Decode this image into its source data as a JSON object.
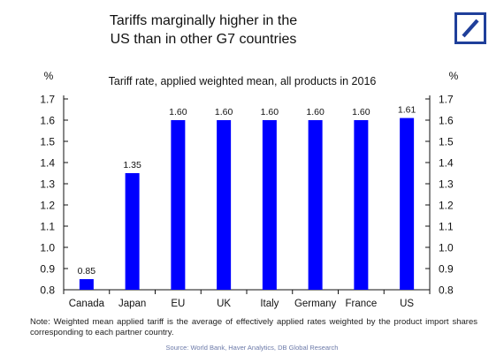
{
  "title_line1": "Tariffs marginally higher in the",
  "title_line2": "US than in other G7 countries",
  "logo_icon": "deutsche-bank-slash-logo",
  "colors": {
    "bar": "#0000ff",
    "logo": "#1f3f9a",
    "text": "#111111",
    "source": "#6b79a8"
  },
  "chart_data": {
    "type": "bar",
    "title": "Tariff rate, applied weighted mean, all products in 2016",
    "y_unit_left": "%",
    "y_unit_right": "%",
    "categories": [
      "Canada",
      "Japan",
      "EU",
      "UK",
      "Italy",
      "Germany",
      "France",
      "US"
    ],
    "values": [
      0.85,
      1.35,
      1.6,
      1.6,
      1.6,
      1.6,
      1.6,
      1.61
    ],
    "data_labels": [
      "0.85",
      "1.35",
      "1.60",
      "1.60",
      "1.60",
      "1.60",
      "1.60",
      "1.61"
    ],
    "ylim": [
      0.8,
      1.7
    ],
    "yticks": [
      "0.8",
      "0.9",
      "1.0",
      "1.1",
      "1.2",
      "1.3",
      "1.4",
      "1.5",
      "1.6",
      "1.7"
    ],
    "grid": false,
    "legend": "none"
  },
  "note": "Note: Weighted mean applied tariff is the average of effectively applied rates weighted by the product import shares corresponding to each partner country.",
  "source": "Source: World Bank, Haver Analytics, DB Global Research"
}
